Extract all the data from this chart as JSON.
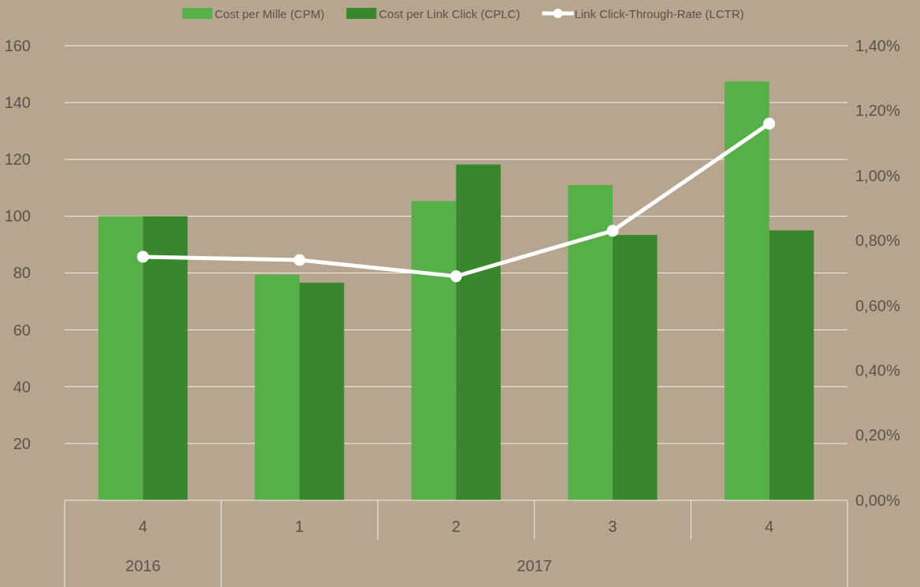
{
  "chart_data": {
    "type": "bar",
    "categories": [
      "4",
      "1",
      "2",
      "3",
      "4"
    ],
    "series": [
      {
        "name": "Cost per Mille (CPM)",
        "color": "#55b047",
        "values": [
          100,
          79.4,
          105.3,
          110.9,
          147.4
        ]
      },
      {
        "name": "Cost per Link Click (CPLC)",
        "color": "#38872d",
        "values": [
          100,
          76.6,
          118.2,
          93.4,
          95.0
        ]
      },
      {
        "name": "Link Click-Through-Rate (LCTR)",
        "type": "line",
        "axis": "y2",
        "color": "#ffffff",
        "values": [
          0.75,
          0.74,
          0.69,
          0.83,
          1.16
        ]
      }
    ],
    "ylim": [
      0,
      160
    ],
    "yticks": [
      20,
      40,
      60,
      80,
      100,
      120,
      140,
      160
    ],
    "y2lim": [
      0,
      1.4
    ],
    "y2ticks": [
      {
        "value": 0,
        "label": "0,00%"
      },
      {
        "value": 0.2,
        "label": "0,20%"
      },
      {
        "value": 0.4,
        "label": "0,40%"
      },
      {
        "value": 0.6,
        "label": "0,60%"
      },
      {
        "value": 0.8,
        "label": "0,80%"
      },
      {
        "value": 1.0,
        "label": "1,00%"
      },
      {
        "value": 1.2,
        "label": "1,20%"
      },
      {
        "value": 1.4,
        "label": "1,40%"
      }
    ],
    "grid": "y",
    "legend": "top",
    "marker": "circle",
    "line_style": "solid",
    "annotations": [
      "2016",
      "2017"
    ]
  }
}
